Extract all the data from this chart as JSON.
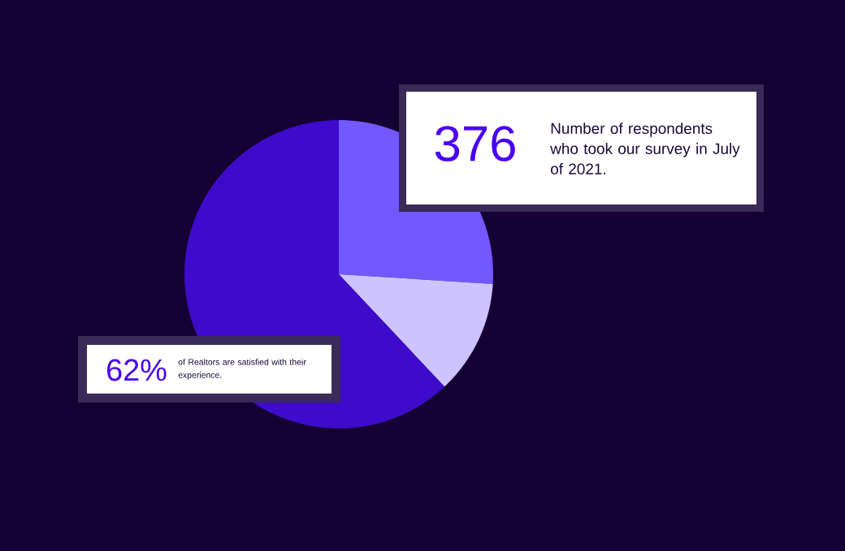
{
  "chart_data": {
    "type": "pie",
    "categories": [
      null,
      null,
      null
    ],
    "values": [
      26,
      12,
      62
    ],
    "colors": [
      "#7357ff",
      "#cdc3ff",
      "#3d0bc9"
    ],
    "annotations": [
      "376",
      "Number of respondents who took our survey in July of 2021.",
      "62%",
      "of Realtors are satisfied with their experience."
    ]
  }
}
